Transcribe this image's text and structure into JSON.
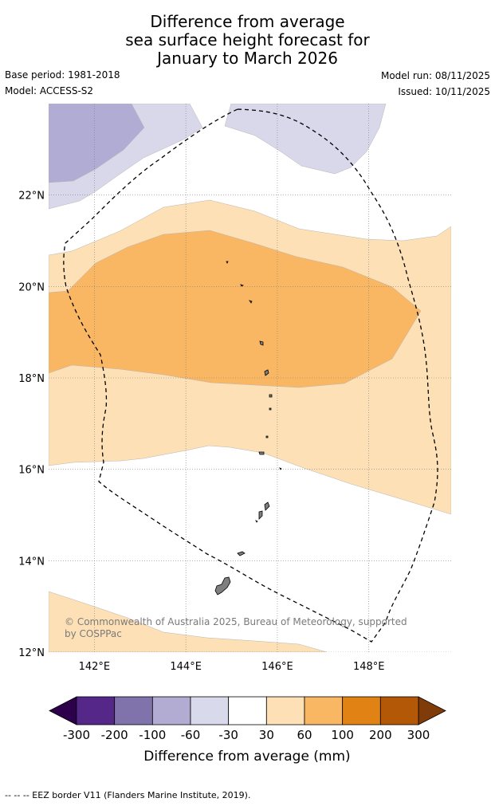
{
  "title": {
    "line1": "Difference from average",
    "line2": "sea surface height forecast for",
    "line3": "January to March 2026"
  },
  "meta": {
    "base_period": "Base period: 1981-2018",
    "model": "Model: ACCESS-S2",
    "model_run": "Model run: 08/11/2025",
    "issued": "Issued: 10/11/2025"
  },
  "map": {
    "extent": {
      "lon_min": 141.0,
      "lon_max": 149.8,
      "lat_min": 12.0,
      "lat_max": 24.0
    },
    "lat_ticks": [
      {
        "value": 22,
        "label": "22°N"
      },
      {
        "value": 20,
        "label": "20°N"
      },
      {
        "value": 18,
        "label": "18°N"
      },
      {
        "value": 16,
        "label": "16°N"
      },
      {
        "value": 14,
        "label": "14°N"
      },
      {
        "value": 12,
        "label": "12°N"
      }
    ],
    "lon_ticks": [
      {
        "value": 142,
        "label": "142°E"
      },
      {
        "value": 144,
        "label": "144°E"
      },
      {
        "value": 146,
        "label": "146°E"
      },
      {
        "value": 148,
        "label": "148°E"
      }
    ],
    "copyright_line1": "© Commonwealth of Australia 2025, Bureau of Meteorology, supported",
    "copyright_line2": "by COSPPac",
    "colors": {
      "neg100": "#b1acd3",
      "neg60": "#d9d8ea",
      "pos30": "#fde0b6",
      "pos60": "#f9b663",
      "coast": "#7f7f7f",
      "grid": "#7f7f7f"
    }
  },
  "colorbar": {
    "label": "Difference from average (mm)",
    "tick_labels": [
      "-300",
      "-200",
      "-100",
      "-60",
      "-30",
      "30",
      "60",
      "100",
      "200",
      "300"
    ],
    "under_color": "#2d004b",
    "over_color": "#7f3b08",
    "segment_colors": [
      "#542788",
      "#8073ac",
      "#b2abd2",
      "#d8daeb",
      "#ffffff",
      "#fee0b6",
      "#f9b663",
      "#e08214",
      "#b35806"
    ]
  },
  "footer": "--  --  -- EEZ border V11 (Flanders Marine Institute, 2019)."
}
